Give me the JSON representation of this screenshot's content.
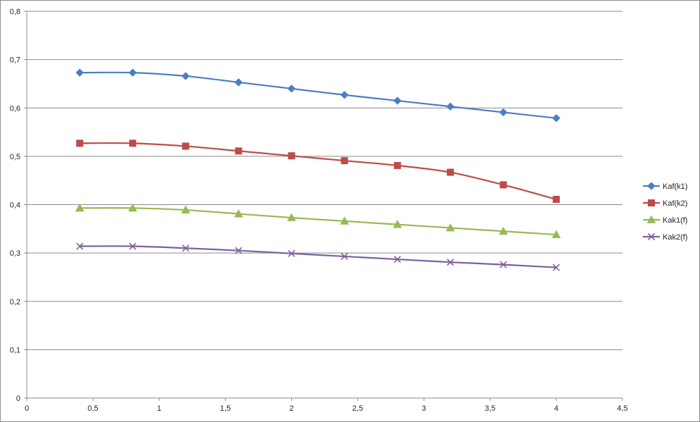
{
  "chart_data": {
    "type": "line",
    "title": "",
    "xlabel": "",
    "ylabel": "",
    "xlim": [
      0,
      4.5
    ],
    "ylim": [
      0,
      0.8
    ],
    "x_ticks": [
      0,
      0.5,
      1,
      1.5,
      2,
      2.5,
      3,
      3.5,
      4,
      4.5
    ],
    "x_tick_labels": [
      "0",
      "0,5",
      "1",
      "1,5",
      "2",
      "2,5",
      "3",
      "3,5",
      "4",
      "4,5"
    ],
    "y_ticks": [
      0,
      0.1,
      0.2,
      0.3,
      0.4,
      0.5,
      0.6,
      0.7,
      0.8
    ],
    "y_tick_labels": [
      "0",
      "0,1",
      "0,2",
      "0,3",
      "0,4",
      "0,5",
      "0,6",
      "0,7",
      "0,8"
    ],
    "grid": "horizontal",
    "legend_position": "right",
    "x": [
      0.4,
      0.8,
      1.2,
      1.6,
      2.0,
      2.4,
      2.8,
      3.2,
      3.6,
      4.0
    ],
    "series": [
      {
        "name": "Kaf(k1)",
        "color": "#4a7ebf",
        "marker": "diamond",
        "values": [
          0.673,
          0.673,
          0.666,
          0.653,
          0.64,
          0.627,
          0.615,
          0.603,
          0.591,
          0.579
        ]
      },
      {
        "name": "Kaf(k2)",
        "color": "#be4b48",
        "marker": "square",
        "values": [
          0.527,
          0.527,
          0.521,
          0.511,
          0.501,
          0.491,
          0.481,
          0.467,
          0.441,
          0.411
        ]
      },
      {
        "name": "Kak1(f)",
        "color": "#98b954",
        "marker": "triangle",
        "values": [
          0.393,
          0.393,
          0.389,
          0.381,
          0.373,
          0.366,
          0.359,
          0.352,
          0.345,
          0.338
        ]
      },
      {
        "name": "Kak2(f)",
        "color": "#7d60a0",
        "marker": "x",
        "values": [
          0.314,
          0.314,
          0.31,
          0.305,
          0.299,
          0.293,
          0.287,
          0.281,
          0.276,
          0.27
        ]
      }
    ]
  }
}
